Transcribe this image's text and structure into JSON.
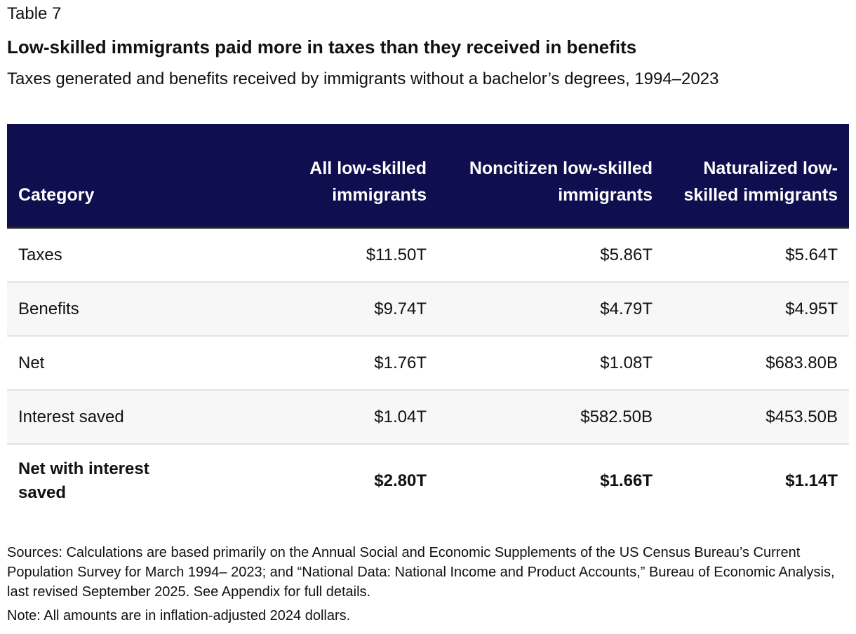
{
  "table_label": "Table 7",
  "title": "Low-skilled immigrants paid more in taxes than they received in benefits",
  "subtitle": "Taxes generated and benefits received by immigrants without a bachelor’s degrees, 1994–2023",
  "header_color": "#0f0f50",
  "chart_data": {
    "type": "table",
    "columns": [
      "Category",
      "All low-skilled immigrants",
      "Noncitizen low-skilled immigrants",
      "Naturalized low-skilled immigrants"
    ],
    "rows": [
      [
        "Taxes",
        "$11.50T",
        "$5.86T",
        "$5.64T"
      ],
      [
        "Benefits",
        "$9.74T",
        "$4.79T",
        "$4.95T"
      ],
      [
        "Net",
        "$1.76T",
        "$1.08T",
        "$683.80B"
      ],
      [
        "Interest saved",
        "$1.04T",
        "$582.50B",
        "$453.50B"
      ],
      [
        "Net with interest saved",
        "$2.80T",
        "$1.66T",
        "$1.14T"
      ]
    ]
  },
  "sources": "Sources: Calculations are based primarily on the Annual Social and Economic Supplements of the US Census Bureau’s Current Population Survey for March 1994– 2023; and “National Data: National Income and Product Accounts,” Bureau of Economic Analysis, last revised September 2025. See Appendix for full details.",
  "note": "Note: All amounts are in inflation-adjusted 2024 dollars."
}
